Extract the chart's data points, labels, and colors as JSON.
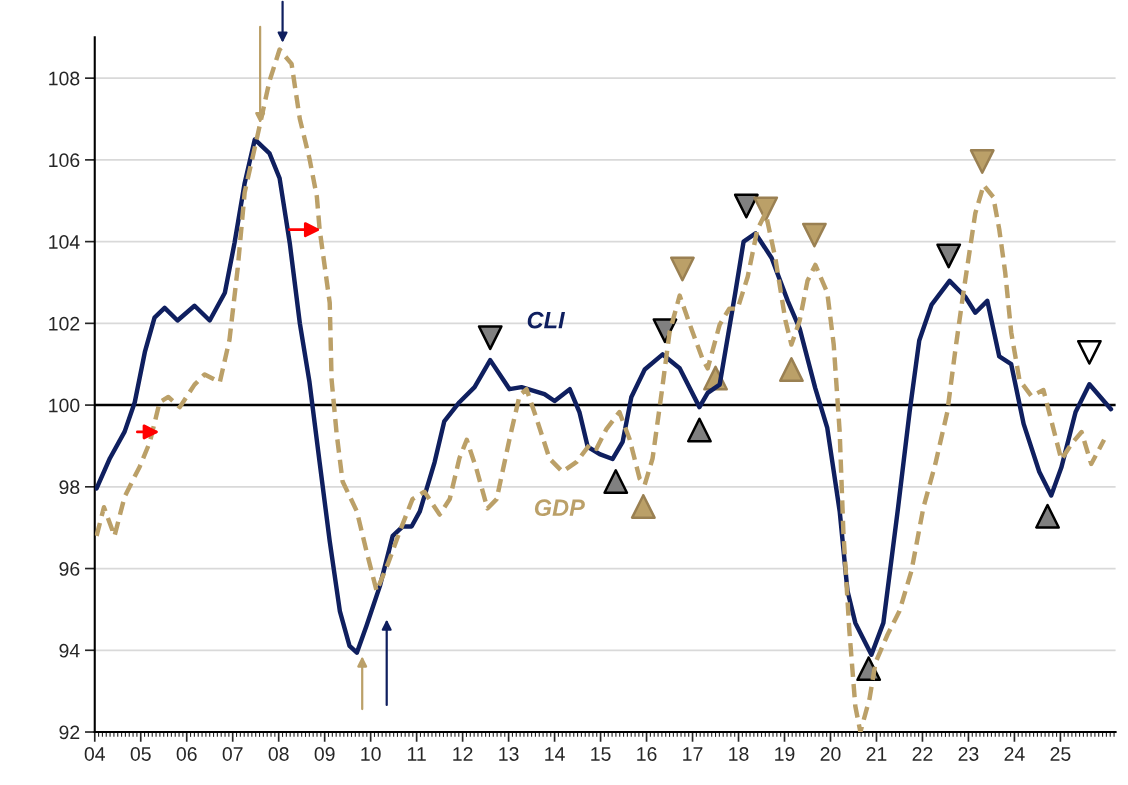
{
  "chart_data": {
    "type": "line",
    "xlim": [
      2004,
      2026.2
    ],
    "ylim": [
      92,
      109
    ],
    "xticks": [
      {
        "value": 2004,
        "label": "04"
      },
      {
        "value": 2005,
        "label": "05"
      },
      {
        "value": 2006,
        "label": "06"
      },
      {
        "value": 2007,
        "label": "07"
      },
      {
        "value": 2008,
        "label": "08"
      },
      {
        "value": 2009,
        "label": "09"
      },
      {
        "value": 2010,
        "label": "10"
      },
      {
        "value": 2011,
        "label": "11"
      },
      {
        "value": 2012,
        "label": "12"
      },
      {
        "value": 2013,
        "label": "13"
      },
      {
        "value": 2014,
        "label": "14"
      },
      {
        "value": 2015,
        "label": "15"
      },
      {
        "value": 2016,
        "label": "16"
      },
      {
        "value": 2017,
        "label": "17"
      },
      {
        "value": 2018,
        "label": "18"
      },
      {
        "value": 2019,
        "label": "19"
      },
      {
        "value": 2020,
        "label": "20"
      },
      {
        "value": 2021,
        "label": "21"
      },
      {
        "value": 2022,
        "label": "22"
      },
      {
        "value": 2023,
        "label": "23"
      },
      {
        "value": 2024,
        "label": "24"
      },
      {
        "value": 2025,
        "label": "25"
      }
    ],
    "yticks": [
      92,
      94,
      96,
      98,
      100,
      102,
      104,
      106,
      108
    ],
    "grid": "y",
    "legend": false,
    "ref_lines": [
      {
        "axis": "y",
        "value": 100,
        "color": "#000000",
        "line_style": "solid"
      }
    ],
    "series": [
      {
        "name": "CLI",
        "color": "#0f1f5f",
        "line_style": "solid",
        "x": [
          2004.04,
          2004.33,
          2004.65,
          2004.87,
          2005.09,
          2005.3,
          2005.52,
          2005.8,
          2006.17,
          2006.5,
          2006.83,
          2007.04,
          2007.26,
          2007.48,
          2007.8,
          2008.02,
          2008.24,
          2008.46,
          2008.67,
          2008.89,
          2009.11,
          2009.33,
          2009.54,
          2009.7,
          2009.91,
          2010.2,
          2010.48,
          2010.7,
          2010.89,
          2011.07,
          2011.39,
          2011.6,
          2011.93,
          2012.26,
          2012.6,
          2013.02,
          2013.28,
          2013.78,
          2014.0,
          2014.33,
          2014.54,
          2014.72,
          2014.98,
          2015.26,
          2015.48,
          2015.67,
          2015.96,
          2016.35,
          2016.72,
          2017.15,
          2017.33,
          2017.59,
          2017.93,
          2018.11,
          2018.37,
          2018.72,
          2019.07,
          2019.33,
          2019.67,
          2019.93,
          2020.2,
          2020.37,
          2020.54,
          2020.89,
          2021.15,
          2021.46,
          2021.72,
          2021.93,
          2022.2,
          2022.59,
          2022.93,
          2023.15,
          2023.41,
          2023.67,
          2023.93,
          2024.2,
          2024.54,
          2024.8,
          2025.02,
          2025.33,
          2025.63,
          2025.93,
          2026.1
        ],
        "values": [
          97.96,
          98.7,
          99.35,
          100.07,
          101.3,
          102.14,
          102.38,
          102.07,
          102.43,
          102.07,
          102.75,
          103.97,
          105.43,
          106.5,
          106.16,
          105.55,
          103.97,
          102.0,
          100.56,
          98.6,
          96.67,
          94.96,
          94.11,
          93.94,
          94.6,
          95.57,
          96.8,
          97.03,
          97.03,
          97.4,
          98.6,
          99.6,
          100.07,
          100.44,
          101.1,
          100.39,
          100.44,
          100.27,
          100.1,
          100.39,
          99.83,
          98.98,
          98.8,
          98.68,
          99.1,
          100.2,
          100.87,
          101.24,
          100.9,
          99.95,
          100.3,
          100.5,
          102.75,
          104.0,
          104.2,
          103.6,
          102.55,
          101.87,
          100.41,
          99.44,
          97.4,
          95.45,
          94.67,
          93.89,
          94.67,
          97.4,
          99.83,
          101.58,
          102.46,
          103.04,
          102.65,
          102.26,
          102.55,
          101.19,
          101.0,
          99.54,
          98.37,
          97.79,
          98.47,
          99.83,
          100.51,
          100.12,
          99.9
        ]
      },
      {
        "name": "GDP",
        "color": "#bba068",
        "line_style": "dashed",
        "x": [
          2004.04,
          2004.2,
          2004.43,
          2004.65,
          2004.98,
          2005.2,
          2005.41,
          2005.6,
          2005.85,
          2006.17,
          2006.39,
          2006.72,
          2006.93,
          2007.11,
          2007.26,
          2007.54,
          2007.8,
          2008.02,
          2008.28,
          2008.46,
          2008.67,
          2008.83,
          2008.89,
          2009.11,
          2009.15,
          2009.26,
          2009.39,
          2009.7,
          2009.91,
          2010.13,
          2010.37,
          2010.63,
          2010.91,
          2011.17,
          2011.5,
          2011.72,
          2011.93,
          2012.09,
          2012.3,
          2012.54,
          2012.74,
          2013.02,
          2013.24,
          2013.39,
          2013.61,
          2013.89,
          2014.17,
          2014.48,
          2014.76,
          2014.91,
          2015.13,
          2015.41,
          2015.63,
          2015.85,
          2015.96,
          2016.13,
          2016.33,
          2016.5,
          2016.72,
          2016.98,
          2017.22,
          2017.33,
          2017.59,
          2017.8,
          2017.98,
          2018.2,
          2018.41,
          2018.59,
          2018.8,
          2019.02,
          2019.15,
          2019.33,
          2019.5,
          2019.67,
          2019.93,
          2020.07,
          2020.2,
          2020.28,
          2020.41,
          2020.54,
          2020.65,
          2020.85,
          2020.98,
          2021.24,
          2021.5,
          2021.76,
          2022.02,
          2022.28,
          2022.54,
          2022.72,
          2022.89,
          2023.15,
          2023.33,
          2023.54,
          2023.67,
          2023.8,
          2023.93,
          2024.11,
          2024.37,
          2024.63,
          2024.8,
          2025.02,
          2025.24,
          2025.46,
          2025.67,
          2025.95
        ],
        "values": [
          96.8,
          97.5,
          96.8,
          97.76,
          98.5,
          99.1,
          100.07,
          100.2,
          99.95,
          100.5,
          100.75,
          100.56,
          101.6,
          103.36,
          105.2,
          106.6,
          107.93,
          108.7,
          108.35,
          107.0,
          106.03,
          105.1,
          104.3,
          102.5,
          100.63,
          99.3,
          98.13,
          97.4,
          96.42,
          95.45,
          96.1,
          96.9,
          97.7,
          97.88,
          97.32,
          97.7,
          98.7,
          99.15,
          98.44,
          97.47,
          97.7,
          99.17,
          100.24,
          100.39,
          99.66,
          98.69,
          98.37,
          98.61,
          99.03,
          98.93,
          99.42,
          99.83,
          99.17,
          98.2,
          98.05,
          98.69,
          100.32,
          101.78,
          102.68,
          101.85,
          101.12,
          100.9,
          101.97,
          102.36,
          102.36,
          103.14,
          104.3,
          104.7,
          103.6,
          102.07,
          101.48,
          102.07,
          103.04,
          103.43,
          102.75,
          101.48,
          99.34,
          96.9,
          94.48,
          92.63,
          92.0,
          92.82,
          93.7,
          94.38,
          94.96,
          95.94,
          97.49,
          98.56,
          99.83,
          101.39,
          102.75,
          104.7,
          105.38,
          105.09,
          104.3,
          103.24,
          101.78,
          100.61,
          100.22,
          100.37,
          99.63,
          98.66,
          99.05,
          99.34,
          98.56,
          99.15
        ]
      },
      {
        "type": "scatter",
        "marker": "triangle-down",
        "color": "#808080",
        "x": [
          2012.6,
          2016.4,
          2018.17,
          2022.57
        ],
        "values": [
          101.65,
          101.82,
          104.87,
          103.65
        ]
      },
      {
        "type": "scatter",
        "marker": "triangle",
        "color": "#808080",
        "x": [
          2015.33,
          2017.15,
          2020.83,
          2024.72
        ],
        "values": [
          98.13,
          99.39,
          93.55,
          97.28
        ]
      },
      {
        "type": "scatter",
        "marker": "triangle-down",
        "color": "#bba068",
        "x": [
          2016.78,
          2018.59,
          2019.65,
          2023.3
        ],
        "values": [
          103.33,
          104.8,
          104.16,
          105.96
        ]
      },
      {
        "type": "scatter",
        "marker": "triangle",
        "color": "#bba068",
        "x": [
          2015.93,
          2017.5,
          2019.15
        ],
        "values": [
          97.52,
          100.66,
          100.87
        ]
      },
      {
        "type": "scatter",
        "marker": "triangle-down",
        "color": "#ffffff",
        "x": [
          2025.63
        ],
        "values": [
          101.29
        ]
      }
    ]
  }
}
